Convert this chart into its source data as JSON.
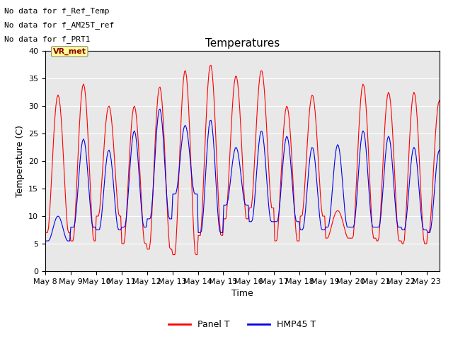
{
  "title": "Temperatures",
  "xlabel": "Time",
  "ylabel": "Temperature (C)",
  "ylim": [
    0,
    40
  ],
  "n_days": 15.5,
  "x_tick_labels": [
    "May 8",
    "May 9",
    "May 10",
    "May 11",
    "May 12",
    "May 13",
    "May 14",
    "May 15",
    "May 16",
    "May 17",
    "May 18",
    "May 19",
    "May 20",
    "May 21",
    "May 22",
    "May 23"
  ],
  "annotations": [
    "No data for f_Ref_Temp",
    "No data for f_AM25T_ref",
    "No data for f_PRT1"
  ],
  "vr_met_label": "VR_met",
  "legend_entries": [
    "Panel T",
    "HMP45 T"
  ],
  "panel_color": "#ff0000",
  "hmp45_color": "#0000ee",
  "background_color": "#e8e8e8",
  "title_fontsize": 11,
  "axis_fontsize": 9,
  "tick_fontsize": 8,
  "annotation_fontsize": 8,
  "panel_day_maxes": [
    32,
    34,
    30,
    30,
    33.5,
    36.5,
    37.5,
    35.5,
    36.5,
    30,
    32,
    11,
    34,
    32.5,
    32.5,
    31
  ],
  "panel_day_mins": [
    7,
    5.5,
    10,
    5,
    4,
    3,
    6.5,
    9.5,
    11.5,
    5.5,
    10,
    6,
    6,
    5.5,
    5,
    7
  ],
  "hmp45_day_maxes": [
    10,
    24,
    22,
    25.5,
    29.5,
    26.5,
    27.5,
    22.5,
    25.5,
    24.5,
    22.5,
    23,
    25.5,
    24.5,
    22.5,
    22
  ],
  "hmp45_day_mins": [
    5.5,
    8,
    7.5,
    8,
    9.5,
    14,
    7,
    12,
    9,
    9,
    7.5,
    8,
    8,
    8,
    7.5,
    7
  ]
}
